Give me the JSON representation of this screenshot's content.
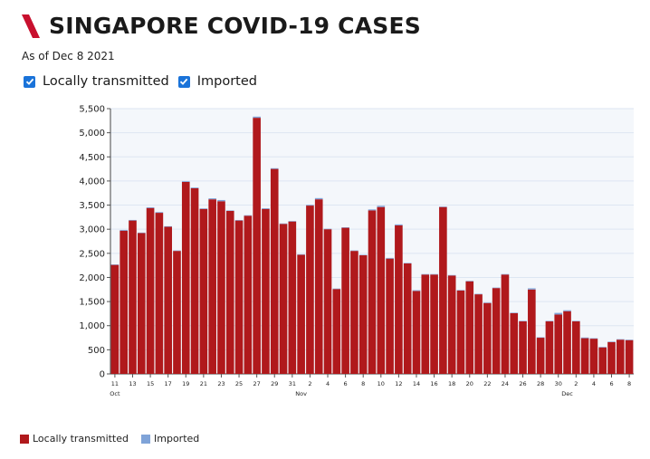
{
  "header": {
    "title": "SINGAPORE COVID-19 CASES",
    "as_of": "As of Dec 8 2021"
  },
  "filters": [
    {
      "label": "Locally transmitted",
      "checked": true
    },
    {
      "label": "Imported",
      "checked": true
    }
  ],
  "colors": {
    "brand_red": "#c8102e",
    "local": "#b0191c",
    "imported": "#7fa3d8",
    "checkbox": "#1a73d9",
    "grid": "#dde6f2",
    "plot_bg": "#f4f7fb"
  },
  "legend": [
    {
      "label": "Locally transmitted",
      "color": "#b0191c"
    },
    {
      "label": "Imported",
      "color": "#7fa3d8"
    }
  ],
  "chart_data": {
    "type": "bar",
    "stacked": true,
    "ylim": [
      0,
      5500
    ],
    "y_ticks": [
      "0",
      "500",
      "1,000",
      "1,500",
      "2,000",
      "2,500",
      "3,000",
      "3,500",
      "4,000",
      "4,500",
      "5,000",
      "5,500"
    ],
    "grid": true,
    "x_tick_labels": [
      "11",
      "13",
      "15",
      "17",
      "19",
      "21",
      "23",
      "25",
      "27",
      "29",
      "31",
      "2",
      "4",
      "6",
      "8",
      "10",
      "12",
      "14",
      "16",
      "18",
      "20",
      "22",
      "24",
      "26",
      "28",
      "30",
      "2",
      "4",
      "6",
      "8"
    ],
    "month_labels": [
      {
        "label": "Oct",
        "at_index": 0
      },
      {
        "label": "Nov",
        "at_index": 21
      },
      {
        "label": "Dec",
        "at_index": 51
      }
    ],
    "categories": [
      "Oct 11",
      "Oct 12",
      "Oct 13",
      "Oct 14",
      "Oct 15",
      "Oct 16",
      "Oct 17",
      "Oct 18",
      "Oct 19",
      "Oct 20",
      "Oct 21",
      "Oct 22",
      "Oct 23",
      "Oct 24",
      "Oct 25",
      "Oct 26",
      "Oct 27",
      "Oct 28",
      "Oct 29",
      "Oct 30",
      "Oct 31",
      "Nov 1",
      "Nov 2",
      "Nov 3",
      "Nov 4",
      "Nov 5",
      "Nov 6",
      "Nov 7",
      "Nov 8",
      "Nov 9",
      "Nov 10",
      "Nov 11",
      "Nov 12",
      "Nov 13",
      "Nov 14",
      "Nov 15",
      "Nov 16",
      "Nov 17",
      "Nov 18",
      "Nov 19",
      "Nov 20",
      "Nov 21",
      "Nov 22",
      "Nov 23",
      "Nov 24",
      "Nov 25",
      "Nov 26",
      "Nov 27",
      "Nov 28",
      "Nov 29",
      "Nov 30",
      "Dec 1",
      "Dec 2",
      "Dec 3",
      "Dec 4",
      "Dec 5",
      "Dec 6",
      "Dec 7",
      "Dec 8"
    ],
    "series": [
      {
        "name": "Locally transmitted",
        "color": "#b0191c",
        "values": [
          2260,
          2970,
          3180,
          2920,
          3440,
          3340,
          3050,
          2550,
          3980,
          3850,
          3420,
          3620,
          3580,
          3380,
          3180,
          3280,
          5310,
          3420,
          4250,
          3110,
          3160,
          2470,
          3490,
          3620,
          3000,
          1760,
          3030,
          2550,
          2460,
          3390,
          3460,
          2390,
          3080,
          2290,
          1720,
          2060,
          2060,
          3460,
          2040,
          1730,
          1920,
          1650,
          1470,
          1780,
          2060,
          1260,
          1090,
          1750,
          750,
          1090,
          1230,
          1300,
          1090,
          740,
          730,
          550,
          660,
          710,
          700
        ]
      },
      {
        "name": "Imported",
        "color": "#7fa3d8",
        "values": [
          10,
          15,
          12,
          10,
          15,
          15,
          12,
          10,
          15,
          15,
          12,
          20,
          25,
          10,
          10,
          10,
          25,
          15,
          15,
          10,
          10,
          10,
          15,
          25,
          10,
          10,
          10,
          10,
          10,
          20,
          25,
          15,
          20,
          10,
          15,
          10,
          10,
          10,
          10,
          10,
          10,
          10,
          10,
          10,
          10,
          10,
          10,
          25,
          10,
          10,
          35,
          20,
          10,
          15,
          10,
          10,
          10,
          10,
          10
        ]
      }
    ]
  }
}
